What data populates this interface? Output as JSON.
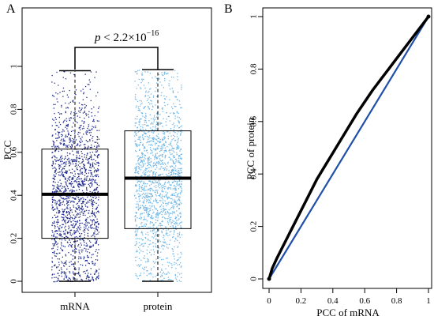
{
  "chart_data": [
    {
      "panel": "A",
      "type": "box",
      "ylabel": "PCC",
      "categories": [
        "mRNA",
        "protein"
      ],
      "ylim": [
        0,
        1
      ],
      "yticks": [
        "0",
        "0.2",
        "0.4",
        "0.6",
        "0.8",
        "1"
      ],
      "annotation": {
        "italic": "p",
        "text": " < 2.2×10",
        "superscript": "−16"
      },
      "boxes": [
        {
          "name": "mRNA",
          "min": 0.0,
          "q1": 0.2,
          "median": 0.405,
          "q3": 0.615,
          "max": 0.98,
          "point_color": "#1f2a8c"
        },
        {
          "name": "protein",
          "min": 0.0,
          "q1": 0.245,
          "median": 0.48,
          "q3": 0.7,
          "max": 0.985,
          "point_color": "#6fb6e6"
        }
      ],
      "grid": false
    },
    {
      "panel": "B",
      "type": "line",
      "xlabel": "PCC of mRNA",
      "ylabel": "PCC of protein",
      "xlim": [
        0,
        1
      ],
      "ylim": [
        0,
        1
      ],
      "xticks": [
        "0",
        "0.2",
        "0.4",
        "0.6",
        "0.8",
        "1"
      ],
      "yticks": [
        "0",
        "0.2",
        "0.4",
        "0.6",
        "0.8",
        "1"
      ],
      "series": [
        {
          "color": "#000000",
          "x": [
            0.0,
            0.02,
            0.05,
            0.1,
            0.15,
            0.2,
            0.25,
            0.3,
            0.35,
            0.4,
            0.45,
            0.5,
            0.55,
            0.6,
            0.65,
            0.7,
            0.75,
            0.8,
            0.85,
            0.9,
            0.95,
            1.0
          ],
          "y": [
            0.0,
            0.04,
            0.08,
            0.14,
            0.2,
            0.26,
            0.32,
            0.38,
            0.43,
            0.48,
            0.53,
            0.58,
            0.63,
            0.675,
            0.72,
            0.76,
            0.8,
            0.84,
            0.88,
            0.92,
            0.96,
            1.0
          ]
        },
        {
          "color": "#1f4fa8",
          "x": [
            0,
            1
          ],
          "y": [
            0,
            1
          ]
        }
      ],
      "grid": false
    }
  ]
}
